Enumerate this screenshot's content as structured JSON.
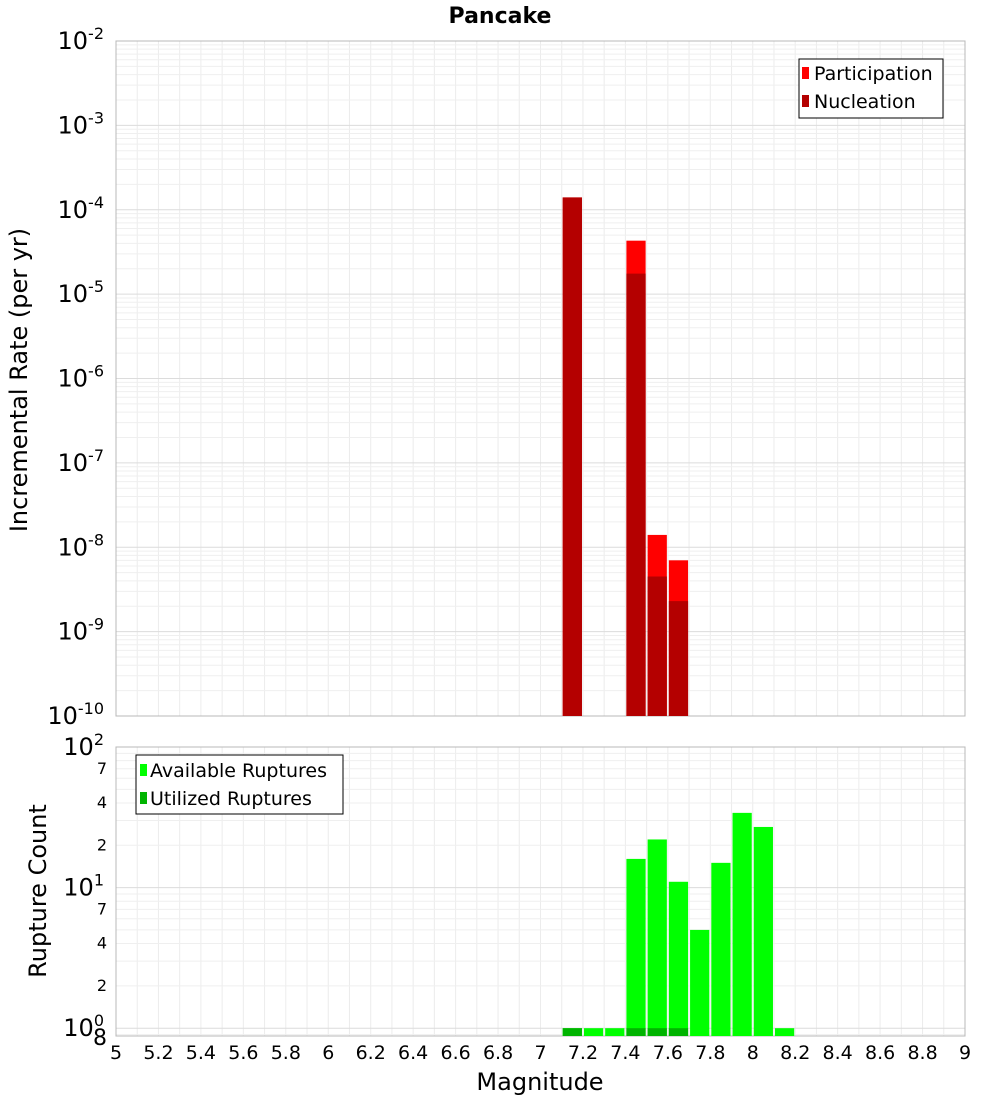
{
  "chart_data": [
    {
      "type": "bar",
      "title": "Pancake",
      "ylabel": "Incremental Rate (per yr)",
      "yscale": "log",
      "ylim": [
        1e-10,
        0.01
      ],
      "y_ticks": [
        {
          "base": "10",
          "exp": "-2"
        },
        {
          "base": "10",
          "exp": "-3"
        },
        {
          "base": "10",
          "exp": "-4"
        },
        {
          "base": "10",
          "exp": "-5"
        },
        {
          "base": "10",
          "exp": "-6"
        },
        {
          "base": "10",
          "exp": "-7"
        },
        {
          "base": "10",
          "exp": "-8"
        },
        {
          "base": "10",
          "exp": "-9"
        },
        {
          "base": "10",
          "exp": "-10"
        }
      ],
      "grid": true,
      "legend_position": "top-right",
      "series": [
        {
          "name": "Participation",
          "color": "#ff0000",
          "points": [
            [
              7.15,
              0.00014
            ],
            [
              7.45,
              4.3e-05
            ],
            [
              7.55,
              1.4e-08
            ],
            [
              7.65,
              7e-09
            ]
          ]
        },
        {
          "name": "Nucleation",
          "color": "#b40000",
          "points": [
            [
              7.15,
              0.00014
            ],
            [
              7.45,
              1.75e-05
            ],
            [
              7.55,
              4.5e-09
            ],
            [
              7.65,
              2.3e-09
            ]
          ]
        }
      ]
    },
    {
      "type": "bar",
      "ylabel": "Rupture Count",
      "xlabel": "Magnitude",
      "yscale": "log",
      "ylim": [
        0.88,
        100
      ],
      "y_ticks": [
        {
          "value": 100,
          "base": "10",
          "exp": "2"
        },
        {
          "value": 70,
          "label": "7"
        },
        {
          "value": 40,
          "label": "4"
        },
        {
          "value": 20,
          "label": "2"
        },
        {
          "value": 10,
          "base": "10",
          "exp": "1"
        },
        {
          "value": 7,
          "label": "7"
        },
        {
          "value": 4,
          "label": "4"
        },
        {
          "value": 2,
          "label": "2"
        },
        {
          "value": 1,
          "base": "10",
          "exp": "0"
        },
        {
          "value": 0.88,
          "label": "8"
        }
      ],
      "x_ticks": [
        "5",
        "5.2",
        "5.4",
        "5.6",
        "5.8",
        "6",
        "6.2",
        "6.4",
        "6.6",
        "6.8",
        "7",
        "7.2",
        "7.4",
        "7.6",
        "7.8",
        "8",
        "8.2",
        "8.4",
        "8.6",
        "8.8",
        "9"
      ],
      "xlim": [
        5,
        9
      ],
      "grid": true,
      "legend_position": "top-left",
      "series": [
        {
          "name": "Available Ruptures",
          "color": "#00ff00",
          "points": [
            [
              7.15,
              1
            ],
            [
              7.25,
              1
            ],
            [
              7.35,
              1
            ],
            [
              7.45,
              16
            ],
            [
              7.55,
              22
            ],
            [
              7.65,
              11
            ],
            [
              7.75,
              5
            ],
            [
              7.85,
              15
            ],
            [
              7.95,
              34
            ],
            [
              8.05,
              27
            ],
            [
              8.15,
              1
            ]
          ]
        },
        {
          "name": "Utilized Ruptures",
          "color": "#00b400",
          "points": [
            [
              7.15,
              1
            ],
            [
              7.45,
              1
            ],
            [
              7.55,
              1
            ],
            [
              7.65,
              1
            ]
          ]
        }
      ]
    }
  ]
}
